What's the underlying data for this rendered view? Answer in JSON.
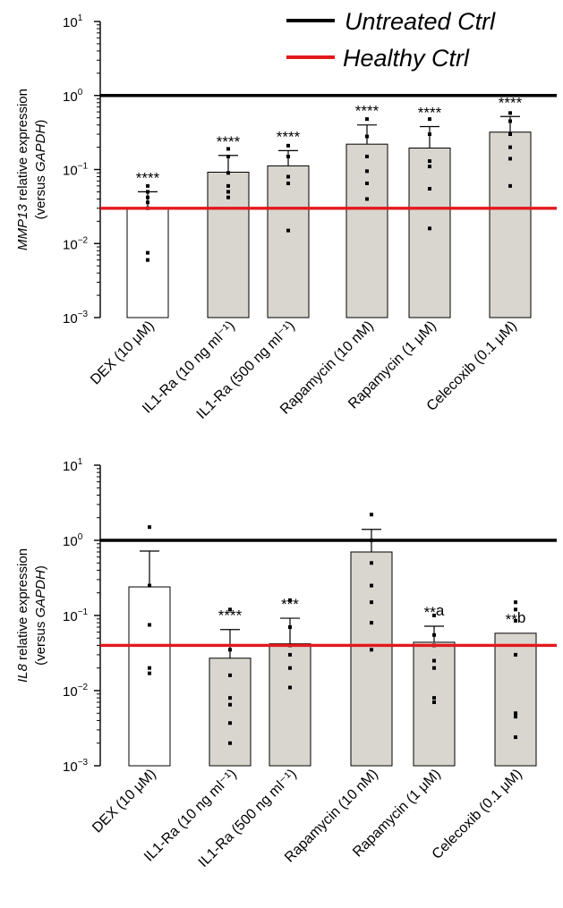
{
  "legend": [
    {
      "label": "Untreated Ctrl",
      "color": "#000000"
    },
    {
      "label": "Healthy Ctrl",
      "color": "#e3191c"
    }
  ],
  "bar_fill_colors": {
    "white": "#ffffff",
    "gray": "#d9d6cf"
  },
  "chart_data": [
    {
      "type": "bar",
      "ylabel_parts": [
        "MMP13",
        " relative expression"
      ],
      "ylabel_line2_parts": [
        "(versus ",
        "GAPDH",
        ")"
      ],
      "yscale": "log",
      "ylim": [
        0.001,
        10
      ],
      "yticks": [
        {
          "base": "10",
          "exp": "1"
        },
        {
          "base": "10",
          "exp": "0"
        },
        {
          "base": "10",
          "exp": "−1"
        },
        {
          "base": "10",
          "exp": "−2"
        },
        {
          "base": "10",
          "exp": "−3"
        }
      ],
      "categories": [
        "DEX (10 μM)",
        "IL1-Ra (10 ng ml⁻¹)",
        "IL1-Ra (500 ng ml⁻¹)",
        "Rapamycin (10 nM)",
        "Rapamycin (1 μM)",
        "Celecoxib (0.1 μM)"
      ],
      "bar_fill": [
        "white",
        "gray",
        "gray",
        "gray",
        "gray",
        "gray"
      ],
      "values": [
        0.03,
        0.092,
        0.112,
        0.22,
        0.195,
        0.32
      ],
      "error_upper": [
        0.05,
        0.155,
        0.18,
        0.4,
        0.38,
        0.52
      ],
      "points": [
        [
          0.06,
          0.05,
          0.042,
          0.036,
          0.03,
          0.006,
          0.0075
        ],
        [
          0.19,
          0.15,
          0.09,
          0.06,
          0.05,
          0.042
        ],
        [
          0.21,
          0.15,
          0.08,
          0.065,
          0.015
        ],
        [
          0.48,
          0.28,
          0.15,
          0.095,
          0.065,
          0.04
        ],
        [
          0.48,
          0.3,
          0.13,
          0.11,
          0.055,
          0.016
        ],
        [
          0.58,
          0.45,
          0.3,
          0.2,
          0.14,
          0.06
        ]
      ],
      "annotations": [
        "****",
        "****",
        "****",
        "****",
        "****",
        "****"
      ],
      "reference_lines": [
        {
          "name": "Untreated Ctrl",
          "y": 1.0
        },
        {
          "name": "Healthy Ctrl",
          "y": 0.03
        }
      ]
    },
    {
      "type": "bar",
      "ylabel_parts": [
        "IL8",
        " relative expression"
      ],
      "ylabel_line2_parts": [
        "(versus ",
        "GAPDH",
        ")"
      ],
      "yscale": "log",
      "ylim": [
        0.001,
        10
      ],
      "yticks": [
        {
          "base": "10",
          "exp": "1"
        },
        {
          "base": "10",
          "exp": "0"
        },
        {
          "base": "10",
          "exp": "−1"
        },
        {
          "base": "10",
          "exp": "−2"
        },
        {
          "base": "10",
          "exp": "−3"
        }
      ],
      "categories": [
        "DEX (10 μM)",
        "IL1-Ra (10 ng ml⁻¹)",
        "IL1-Ra (500 ng ml⁻¹)",
        "Rapamycin (10 nM)",
        "Rapamycin (1 μM)",
        "Celecoxib (0.1 μM)"
      ],
      "bar_fill": [
        "white",
        "gray",
        "gray",
        "gray",
        "gray",
        "gray"
      ],
      "values": [
        0.24,
        0.027,
        0.042,
        0.7,
        0.044,
        0.058
      ],
      "error_upper": [
        0.72,
        0.065,
        0.092,
        1.4,
        0.072,
        0.0
      ],
      "points": [
        [
          1.5,
          0.25,
          0.075,
          0.02,
          0.017
        ],
        [
          0.12,
          0.035,
          0.016,
          0.008,
          0.0065,
          0.0037,
          0.002
        ],
        [
          0.16,
          0.07,
          0.04,
          0.03,
          0.02,
          0.011
        ],
        [
          2.2,
          1.0,
          0.5,
          0.25,
          0.15,
          0.08,
          0.035
        ],
        [
          0.1,
          0.055,
          0.04,
          0.025,
          0.02,
          0.008,
          0.007
        ],
        [
          0.15,
          0.12,
          0.085,
          0.03,
          0.005,
          0.0045,
          0.0024
        ]
      ],
      "annotations": [
        "",
        "****",
        "***",
        "",
        "**a",
        "**b"
      ],
      "reference_lines": [
        {
          "name": "Untreated Ctrl",
          "y": 1.0
        },
        {
          "name": "Healthy Ctrl",
          "y": 0.04
        }
      ]
    }
  ]
}
